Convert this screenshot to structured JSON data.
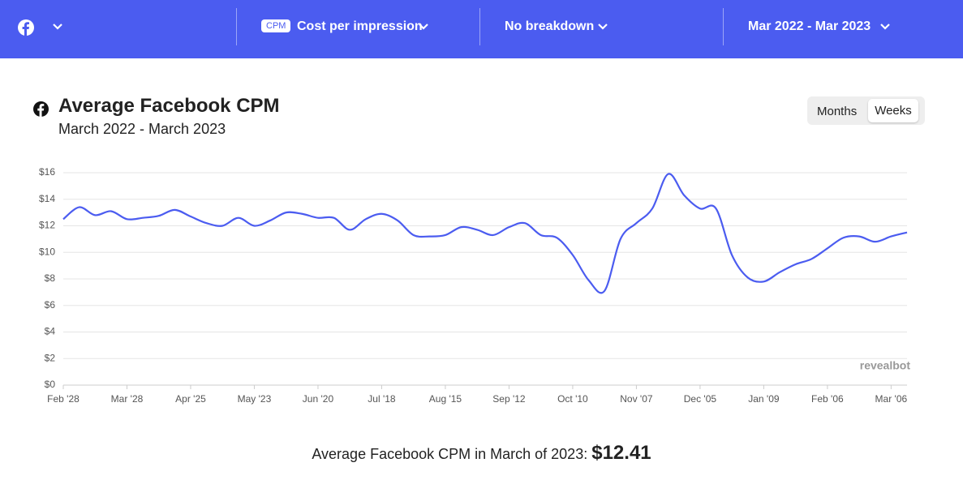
{
  "header": {
    "metric_badge": "CPM",
    "metric": "Cost per impression",
    "breakdown": "No breakdown",
    "date_range": "Mar 2022 - Mar 2023"
  },
  "toggle": {
    "options": [
      "Months",
      "Weeks"
    ]
  },
  "chart_data": {
    "type": "line",
    "title": "Average Facebook CPM",
    "subtitle": "March 2022 - March 2023",
    "categories": [
      "Feb '28",
      null,
      null,
      null,
      "Mar '28",
      null,
      null,
      null,
      "Apr '25",
      null,
      null,
      null,
      "May '23",
      null,
      null,
      null,
      "Jun '20",
      null,
      null,
      null,
      "Jul '18",
      null,
      null,
      null,
      "Aug '15",
      null,
      null,
      null,
      "Sep '12",
      null,
      null,
      null,
      "Oct '10",
      null,
      null,
      null,
      "Nov '07",
      null,
      null,
      null,
      "Dec '05",
      null,
      null,
      null,
      "Jan '09",
      null,
      null,
      null,
      "Feb '06",
      null,
      null,
      null,
      "Mar '06",
      null
    ],
    "values": [
      12.5,
      13.4,
      12.8,
      13.1,
      12.5,
      12.6,
      12.75,
      13.2,
      12.7,
      12.2,
      12.0,
      12.6,
      12.0,
      12.4,
      13.0,
      12.9,
      12.6,
      12.6,
      11.7,
      12.5,
      12.9,
      12.4,
      11.3,
      11.2,
      11.3,
      11.9,
      11.7,
      11.3,
      11.9,
      12.2,
      11.3,
      11.1,
      9.8,
      7.9,
      7.1,
      11.0,
      12.2,
      13.3,
      15.9,
      14.3,
      13.3,
      13.3,
      9.8,
      8.1,
      7.8,
      8.5,
      9.1,
      9.5,
      10.3,
      11.1,
      11.2,
      10.8,
      11.2,
      11.5
    ],
    "color": "#4b5cf0",
    "ylim": [
      0,
      16
    ],
    "yticks": [
      {
        "value": 0,
        "label": "$0"
      },
      {
        "value": 2,
        "label": "$2"
      },
      {
        "value": 4,
        "label": "$4"
      },
      {
        "value": 6,
        "label": "$6"
      },
      {
        "value": 8,
        "label": "$8"
      },
      {
        "value": 10,
        "label": "$10"
      },
      {
        "value": 12,
        "label": "$12"
      },
      {
        "value": 14,
        "label": "$14"
      },
      {
        "value": 16,
        "label": "$16"
      }
    ],
    "grid": true,
    "watermark": "revealbot"
  },
  "footer": {
    "text": "Average Facebook CPM in March of 2023:",
    "value": "$12.41"
  }
}
